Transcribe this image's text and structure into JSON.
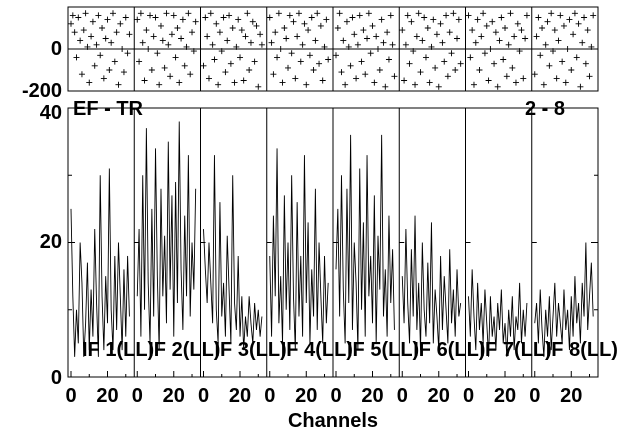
{
  "chart_data": {
    "type": "line",
    "title_left": "EF - TR",
    "title_right": "2 - 8",
    "xlabel": "Channels",
    "x_tick_labels": [
      "0",
      "20"
    ],
    "amp_ylim": [
      0,
      40
    ],
    "amp_yticks": [
      "0",
      "20",
      "40"
    ],
    "phase_ylim": [
      -200,
      200
    ],
    "phase_yticks": [
      "0",
      "-200"
    ],
    "channel_range": [
      0,
      33
    ],
    "panels": [
      {
        "label": "IF 1(LL)",
        "amplitude": [
          25,
          12,
          3,
          10,
          5,
          20,
          14,
          3,
          8,
          17,
          4,
          13,
          6,
          22,
          11,
          3,
          30,
          12,
          4,
          15,
          8,
          31,
          10,
          4,
          18,
          7,
          20,
          12,
          4,
          16,
          6,
          18,
          9
        ],
        "phase": [
          120,
          160,
          80,
          -40,
          150,
          40,
          -120,
          90,
          170,
          10,
          -160,
          60,
          130,
          -80,
          20,
          160,
          -30,
          100,
          -140,
          50,
          140,
          -100,
          30,
          170,
          -60,
          80,
          -170,
          120,
          0,
          -110,
          150,
          -20,
          70
        ]
      },
      {
        "label": "IF 2(LL)",
        "amplitude": [
          12,
          22,
          6,
          30,
          10,
          37,
          14,
          5,
          25,
          9,
          34,
          15,
          4,
          28,
          12,
          21,
          8,
          35,
          13,
          27,
          6,
          29,
          11,
          38,
          16,
          7,
          24,
          12,
          33,
          9,
          20,
          13,
          28
        ],
        "phase": [
          140,
          -60,
          170,
          30,
          -150,
          90,
          0,
          160,
          -100,
          60,
          150,
          -20,
          -170,
          110,
          40,
          -90,
          170,
          20,
          -130,
          70,
          160,
          -40,
          100,
          -160,
          50,
          140,
          -80,
          10,
          170,
          -120,
          80,
          -10,
          130
        ]
      },
      {
        "label": "IF 3(LL)",
        "amplitude": [
          22,
          16,
          11,
          20,
          14,
          8,
          33,
          10,
          5,
          26,
          9,
          14,
          6,
          21,
          13,
          5,
          30,
          11,
          7,
          18,
          6,
          12,
          4,
          9,
          6,
          12,
          8,
          5,
          11,
          7,
          10,
          6,
          9
        ],
        "phase": [
          -80,
          150,
          60,
          -140,
          170,
          20,
          -50,
          120,
          -170,
          80,
          -10,
          150,
          -110,
          40,
          160,
          -70,
          100,
          -160,
          10,
          140,
          -40,
          90,
          -150,
          60,
          170,
          -100,
          30,
          130,
          -60,
          110,
          -180,
          70,
          20
        ]
      },
      {
        "label": "IF 4(LL)",
        "amplitude": [
          18,
          6,
          24,
          12,
          34,
          8,
          15,
          5,
          27,
          10,
          20,
          7,
          30,
          12,
          4,
          26,
          9,
          18,
          6,
          33,
          11,
          23,
          5,
          16,
          9,
          28,
          7,
          20,
          12,
          5,
          18,
          8,
          14
        ],
        "phase": [
          150,
          30,
          -120,
          80,
          -40,
          170,
          0,
          -160,
          100,
          50,
          -90,
          160,
          -20,
          130,
          -140,
          60,
          170,
          -60,
          20,
          120,
          -170,
          90,
          -30,
          150,
          -100,
          40,
          170,
          -70,
          110,
          -150,
          10,
          140,
          -50
        ]
      },
      {
        "label": "IF 5(LL)",
        "amplitude": [
          16,
          25,
          9,
          30,
          13,
          5,
          28,
          11,
          36,
          7,
          20,
          14,
          4,
          31,
          10,
          23,
          6,
          33,
          12,
          18,
          8,
          27,
          5,
          21,
          13,
          36,
          9,
          16,
          6,
          24,
          11,
          19,
          7
        ],
        "phase": [
          -30,
          100,
          170,
          -110,
          40,
          -170,
          130,
          10,
          -80,
          150,
          70,
          -140,
          20,
          160,
          -60,
          90,
          -120,
          50,
          170,
          -20,
          110,
          -160,
          60,
          0,
          -100,
          140,
          30,
          -180,
          80,
          -50,
          160,
          20,
          -130
        ]
      },
      {
        "label": "IF 6(LL)",
        "amplitude": [
          15,
          8,
          22,
          11,
          5,
          19,
          9,
          24,
          7,
          14,
          4,
          20,
          10,
          6,
          17,
          8,
          23,
          5,
          13,
          9,
          4,
          18,
          7,
          15,
          10,
          5,
          19,
          8,
          13,
          6,
          16,
          9,
          11
        ],
        "phase": [
          90,
          -150,
          20,
          160,
          -70,
          130,
          -10,
          -170,
          60,
          170,
          -110,
          40,
          150,
          -40,
          100,
          -160,
          10,
          140,
          -90,
          70,
          -180,
          120,
          30,
          -60,
          160,
          -130,
          80,
          -20,
          170,
          -100,
          50,
          140,
          -70
        ]
      },
      {
        "label": "IF 7(LL)",
        "amplitude": [
          12,
          6,
          16,
          9,
          4,
          14,
          7,
          11,
          5,
          13,
          8,
          3,
          12,
          6,
          9,
          4,
          11,
          7,
          13,
          5,
          8,
          3,
          10,
          6,
          12,
          4,
          9,
          7,
          14,
          5,
          10,
          6,
          11
        ],
        "phase": [
          160,
          -40,
          90,
          -170,
          30,
          140,
          -100,
          60,
          170,
          -20,
          110,
          -150,
          0,
          130,
          -70,
          80,
          -180,
          40,
          150,
          -50,
          100,
          -130,
          20,
          170,
          -90,
          60,
          -160,
          120,
          -10,
          90,
          -140,
          50,
          160
        ]
      },
      {
        "label": "IF 8(LL)",
        "amplitude": [
          8,
          11,
          5,
          13,
          7,
          3,
          10,
          6,
          12,
          4,
          9,
          14,
          6,
          11,
          8,
          5,
          13,
          7,
          10,
          4,
          12,
          6,
          15,
          8,
          11,
          5,
          14,
          9,
          20,
          7,
          12,
          17,
          9
        ],
        "phase": [
          -120,
          60,
          150,
          -30,
          100,
          -170,
          20,
          130,
          -80,
          170,
          -10,
          90,
          -140,
          40,
          160,
          -60,
          110,
          -160,
          0,
          140,
          -100,
          70,
          170,
          -40,
          120,
          -180,
          30,
          150,
          -70,
          90,
          -130,
          10,
          160
        ]
      }
    ]
  }
}
